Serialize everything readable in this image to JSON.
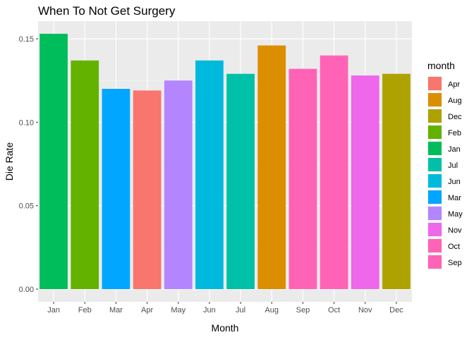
{
  "chart_data": {
    "type": "bar",
    "title": "When To Not Get Surgery",
    "xlabel": "Month",
    "ylabel": "Die Rate",
    "ylim": [
      0,
      0.158
    ],
    "yticks": [
      "0.00",
      "0.05",
      "0.10",
      "0.15"
    ],
    "grid": true,
    "legend_position": "right",
    "legend_title": "month",
    "categories": [
      "Jan",
      "Feb",
      "Mar",
      "Apr",
      "May",
      "Jun",
      "Jul",
      "Aug",
      "Sep",
      "Oct",
      "Nov",
      "Dec"
    ],
    "values": [
      0.153,
      0.137,
      0.12,
      0.119,
      0.125,
      0.137,
      0.129,
      0.146,
      0.132,
      0.14,
      0.128,
      0.129
    ],
    "colors": {
      "Apr": "#F8766D",
      "Aug": "#DB8E00",
      "Dec": "#AEA200",
      "Feb": "#64B200",
      "Jan": "#00BD5C",
      "Jul": "#00C1A7",
      "Jun": "#00BADE",
      "Mar": "#00A6FF",
      "May": "#B385FF",
      "Nov": "#EF67EB",
      "Oct": "#FF63B6",
      "Sep": "#FF63B6"
    },
    "legend": [
      "Apr",
      "Aug",
      "Dec",
      "Feb",
      "Jan",
      "Jul",
      "Jun",
      "Mar",
      "May",
      "Nov",
      "Oct",
      "Sep"
    ]
  }
}
